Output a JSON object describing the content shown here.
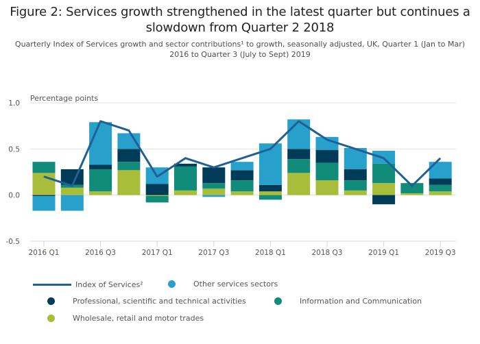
{
  "title": "Figure 2: Services growth strengthened in the latest quarter but continues a slowdown from Quarter 2 2018",
  "subtitle": "Quarterly Index of Services growth and sector contributions¹ to growth, seasonally adjusted, UK, Quarter 1 (Jan to Mar) 2016 to Quarter 3 (July to Sept) 2019",
  "chart_data": {
    "type": "bar",
    "subtype": "stacked-bar-with-line",
    "title": "Figure 2: Services growth strengthened in the latest quarter but continues a slowdown from Quarter 2 2018",
    "ylabel": "Percentage points",
    "xlabel": "",
    "ylim": [
      -0.5,
      1.0
    ],
    "yticks": [
      "1.0",
      "0.5",
      "0.0",
      "-0.5"
    ],
    "ytick_values": [
      1.0,
      0.5,
      0.0,
      -0.5
    ],
    "grid": true,
    "legend_position": "bottom",
    "categories": [
      "2016 Q1",
      "2016 Q2",
      "2016 Q3",
      "2016 Q4",
      "2017 Q1",
      "2017 Q2",
      "2017 Q3",
      "2017 Q4",
      "2018 Q1",
      "2018 Q2",
      "2018 Q3",
      "2018 Q4",
      "2019 Q1",
      "2019 Q2",
      "2019 Q3"
    ],
    "xtick_labels": [
      "2016 Q1",
      "",
      "2016 Q3",
      "",
      "2017 Q1",
      "",
      "2017 Q3",
      "",
      "2018 Q1",
      "",
      "2018 Q3",
      "",
      "2019 Q1",
      "",
      "2019 Q3"
    ],
    "series": [
      {
        "name": "Wholesale, retail and motor trades",
        "kind": "bar",
        "color": "#a8bd3a",
        "values": [
          0.24,
          0.08,
          0.04,
          0.27,
          -0.01,
          0.05,
          0.07,
          0.04,
          0.04,
          0.24,
          0.16,
          0.05,
          0.13,
          0.02,
          0.04
        ]
      },
      {
        "name": "Information and Communication",
        "kind": "bar",
        "color": "#118c7b",
        "values": [
          0.12,
          0.03,
          0.24,
          0.09,
          -0.07,
          0.26,
          0.06,
          0.12,
          -0.05,
          0.15,
          0.19,
          0.11,
          0.21,
          0.11,
          0.07
        ]
      },
      {
        "name": "Professional, scientific and technical activities",
        "kind": "bar",
        "color": "#003c57",
        "values": [
          -0.01,
          0.17,
          0.05,
          0.14,
          0.12,
          0.03,
          0.17,
          0.11,
          0.07,
          0.11,
          0.14,
          0.12,
          -0.1,
          0.0,
          0.07
        ]
      },
      {
        "name": "Other services sectors",
        "kind": "bar",
        "color": "#27a0cc",
        "values": [
          -0.16,
          -0.17,
          0.46,
          0.17,
          0.18,
          0.0,
          -0.02,
          0.09,
          0.45,
          0.32,
          0.14,
          0.23,
          0.14,
          0.0,
          0.18
        ]
      },
      {
        "name": "Index of Services²",
        "kind": "line",
        "color": "#206095",
        "values": [
          0.2,
          0.1,
          0.8,
          0.7,
          0.2,
          0.4,
          0.3,
          0.4,
          0.5,
          0.8,
          0.6,
          0.5,
          0.4,
          0.1,
          0.4
        ]
      }
    ]
  },
  "legend": [
    {
      "label": "Index of Services²",
      "marker": "line",
      "color": "#206095"
    },
    {
      "label": "Other services sectors",
      "marker": "dot",
      "color": "#27a0cc"
    },
    {
      "label": "Professional, scientific and technical activities",
      "marker": "dot",
      "color": "#003c57"
    },
    {
      "label": "Information and Communication",
      "marker": "dot",
      "color": "#118c7b"
    },
    {
      "label": "Wholesale, retail and motor trades",
      "marker": "dot",
      "color": "#a8bd3a"
    }
  ]
}
